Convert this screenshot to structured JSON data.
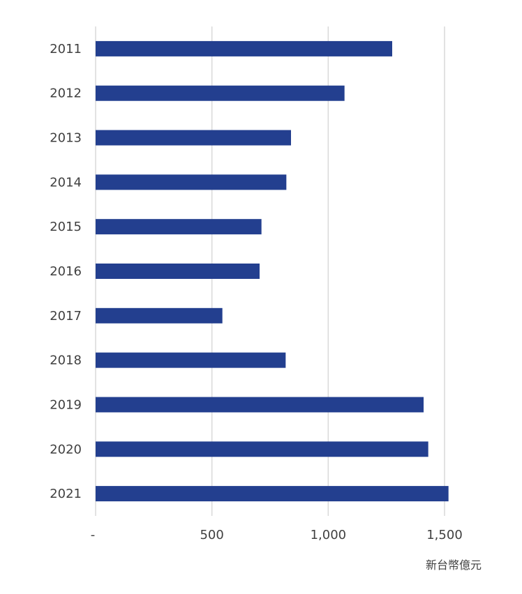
{
  "chart_data": {
    "type": "bar",
    "orientation": "horizontal",
    "categories": [
      "2011",
      "2012",
      "2013",
      "2014",
      "2015",
      "2016",
      "2017",
      "2018",
      "2019",
      "2020",
      "2021"
    ],
    "values": [
      1275,
      1070,
      840,
      820,
      713,
      705,
      545,
      817,
      1410,
      1430,
      1517
    ],
    "xlim": [
      0,
      1650
    ],
    "ticks": [
      0,
      500,
      1000,
      1500
    ],
    "tick_labels": [
      "-",
      "500",
      "1,000",
      "1,500"
    ],
    "unit": "新台幣億元",
    "grid": true,
    "bar_color": "#233F8F",
    "grid_color": "#D9D9D9"
  }
}
